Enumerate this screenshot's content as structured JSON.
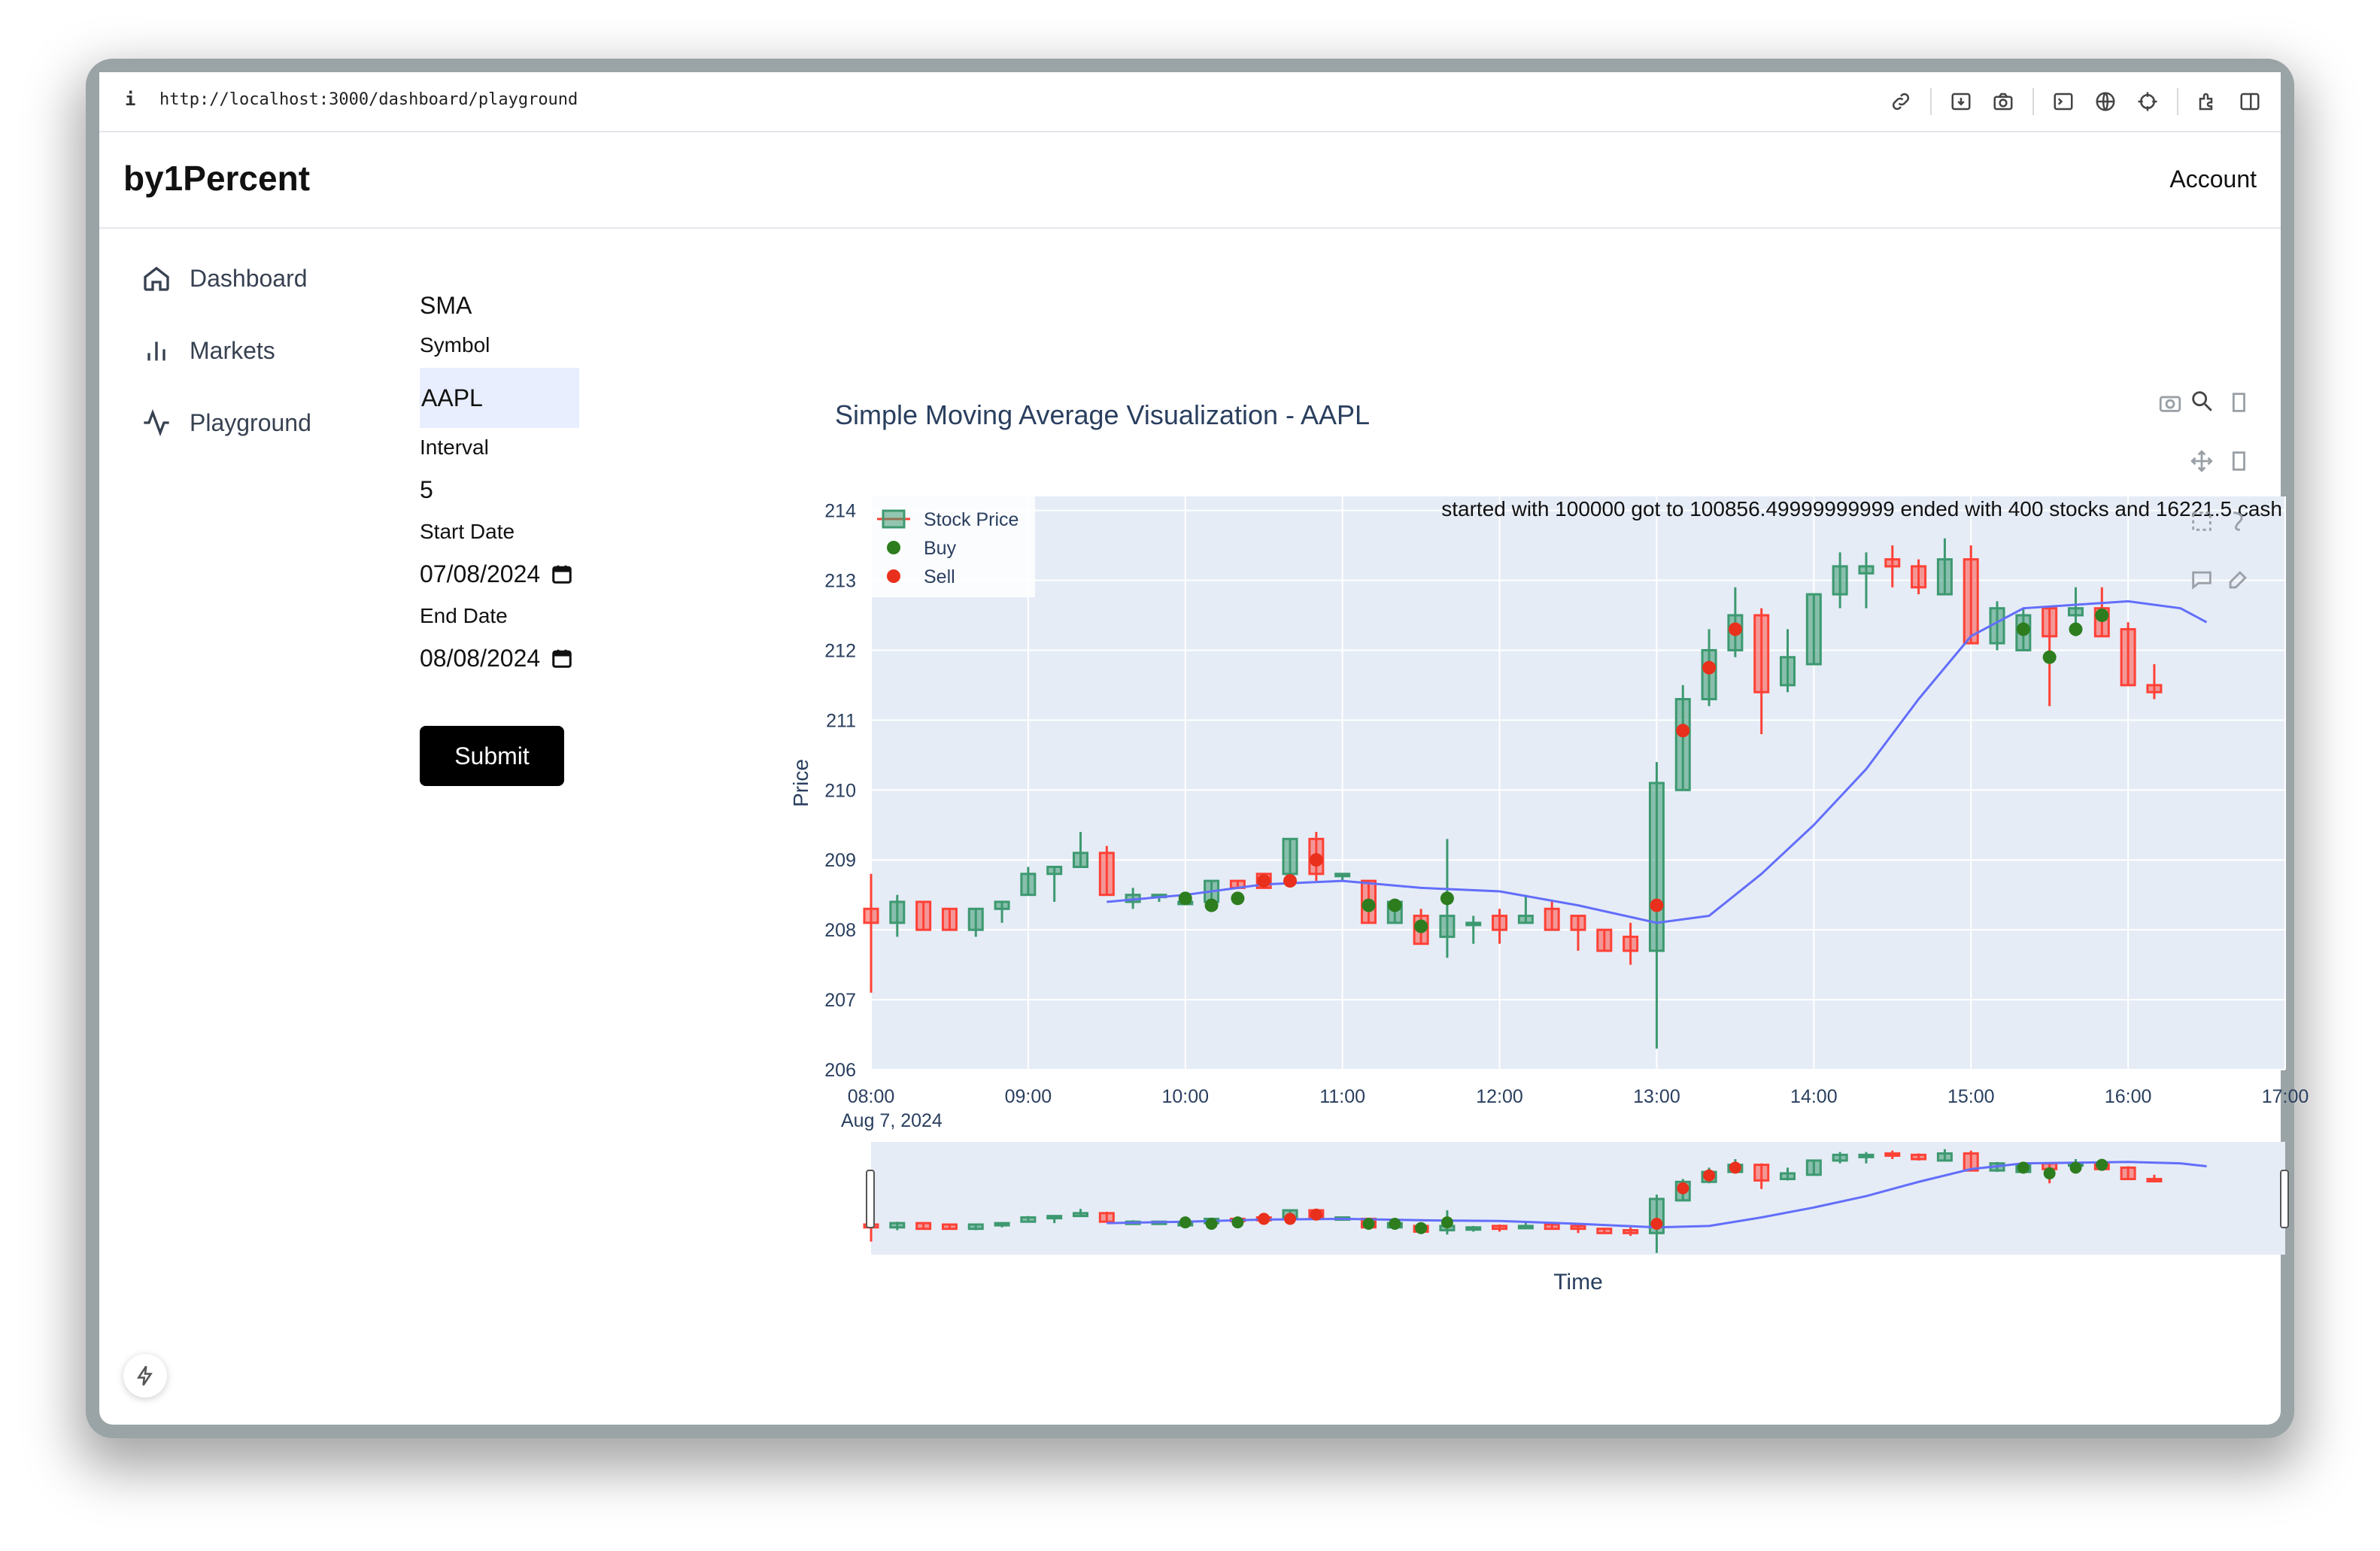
{
  "browser": {
    "info_glyph": "i",
    "url": "http://localhost:3000/dashboard/playground",
    "toolbar_icons": [
      "link-icon",
      "download-icon",
      "camera-icon",
      "terminal-icon",
      "globe-icon",
      "crosshair-icon",
      "extension-icon",
      "sidebar-icon"
    ]
  },
  "header": {
    "brand": "by1Percent",
    "account": "Account"
  },
  "sidebar": {
    "items": [
      {
        "label": "Dashboard",
        "icon": "home-icon"
      },
      {
        "label": "Markets",
        "icon": "bar-chart-icon"
      },
      {
        "label": "Playground",
        "icon": "activity-icon"
      }
    ]
  },
  "form": {
    "title": "SMA",
    "symbol_label": "Symbol",
    "symbol_value": "AAPL",
    "interval_label": "Interval",
    "interval_value": "5",
    "start_label": "Start Date",
    "start_value": "07/08/2024",
    "end_label": "End Date",
    "end_value": "08/08/2024",
    "submit_label": "Submit"
  },
  "colors": {
    "increasing": "#3d9970",
    "decreasing": "#ff4136",
    "sma": "#636efa",
    "buy": "#2d7d1e",
    "sell": "#e8301c",
    "plot_bg": "#e5ecf6"
  },
  "chart_data": {
    "type": "candlestick",
    "title": "Simple Moving Average Visualization - AAPL",
    "annotation": "started with 100000 got to 100856.49999999999 ended with 400 stocks and 16221.5 cash",
    "xlabel": "Time",
    "ylabel": "Price",
    "date_label": "Aug 7, 2024",
    "ylim": [
      206,
      214.2
    ],
    "xlim": [
      "08:00",
      "17:00"
    ],
    "x_ticks": [
      "08:00",
      "09:00",
      "10:00",
      "11:00",
      "12:00",
      "13:00",
      "14:00",
      "15:00",
      "16:00",
      "17:00"
    ],
    "y_ticks": [
      206,
      207,
      208,
      209,
      210,
      211,
      212,
      213,
      214
    ],
    "legend": [
      "Stock Price",
      "Buy",
      "Sell"
    ],
    "legend_position": "top-left",
    "grid": true,
    "rangeslider": true,
    "ohlc": [
      {
        "t": "08:00",
        "o": 208.3,
        "h": 208.8,
        "l": 207.1,
        "c": 208.1
      },
      {
        "t": "08:10",
        "o": 208.1,
        "h": 208.5,
        "l": 207.9,
        "c": 208.4
      },
      {
        "t": "08:20",
        "o": 208.4,
        "h": 208.4,
        "l": 208.0,
        "c": 208.0
      },
      {
        "t": "08:30",
        "o": 208.3,
        "h": 208.3,
        "l": 208.0,
        "c": 208.0
      },
      {
        "t": "08:40",
        "o": 208.0,
        "h": 208.3,
        "l": 207.9,
        "c": 208.3
      },
      {
        "t": "08:50",
        "o": 208.3,
        "h": 208.4,
        "l": 208.1,
        "c": 208.4
      },
      {
        "t": "09:00",
        "o": 208.5,
        "h": 208.9,
        "l": 208.5,
        "c": 208.8
      },
      {
        "t": "09:10",
        "o": 208.8,
        "h": 208.9,
        "l": 208.4,
        "c": 208.9
      },
      {
        "t": "09:20",
        "o": 208.9,
        "h": 209.4,
        "l": 208.9,
        "c": 209.1
      },
      {
        "t": "09:30",
        "o": 209.1,
        "h": 209.2,
        "l": 208.5,
        "c": 208.5
      },
      {
        "t": "09:40",
        "o": 208.4,
        "h": 208.6,
        "l": 208.3,
        "c": 208.5
      },
      {
        "t": "09:50",
        "o": 208.5,
        "h": 208.5,
        "l": 208.4,
        "c": 208.5
      },
      {
        "t": "10:00",
        "o": 208.4,
        "h": 208.5,
        "l": 208.4,
        "c": 208.4
      },
      {
        "t": "10:10",
        "o": 208.4,
        "h": 208.7,
        "l": 208.3,
        "c": 208.7
      },
      {
        "t": "10:20",
        "o": 208.7,
        "h": 208.7,
        "l": 208.6,
        "c": 208.6
      },
      {
        "t": "10:30",
        "o": 208.8,
        "h": 208.8,
        "l": 208.6,
        "c": 208.6
      },
      {
        "t": "10:40",
        "o": 208.8,
        "h": 209.3,
        "l": 208.8,
        "c": 209.3
      },
      {
        "t": "10:50",
        "o": 209.3,
        "h": 209.4,
        "l": 208.7,
        "c": 208.8
      },
      {
        "t": "11:00",
        "o": 208.8,
        "h": 208.8,
        "l": 208.7,
        "c": 208.8
      },
      {
        "t": "11:10",
        "o": 208.7,
        "h": 208.7,
        "l": 208.1,
        "c": 208.1
      },
      {
        "t": "11:20",
        "o": 208.1,
        "h": 208.4,
        "l": 208.1,
        "c": 208.4
      },
      {
        "t": "11:30",
        "o": 208.2,
        "h": 208.3,
        "l": 207.8,
        "c": 207.8
      },
      {
        "t": "11:40",
        "o": 207.9,
        "h": 209.3,
        "l": 207.6,
        "c": 208.2
      },
      {
        "t": "11:50",
        "o": 208.1,
        "h": 208.2,
        "l": 207.8,
        "c": 208.1
      },
      {
        "t": "12:00",
        "o": 208.2,
        "h": 208.3,
        "l": 207.8,
        "c": 208.0
      },
      {
        "t": "12:10",
        "o": 208.1,
        "h": 208.5,
        "l": 208.1,
        "c": 208.2
      },
      {
        "t": "12:20",
        "o": 208.3,
        "h": 208.4,
        "l": 208.0,
        "c": 208.0
      },
      {
        "t": "12:30",
        "o": 208.2,
        "h": 208.2,
        "l": 207.7,
        "c": 208.0
      },
      {
        "t": "12:40",
        "o": 208.0,
        "h": 208.0,
        "l": 207.7,
        "c": 207.7
      },
      {
        "t": "12:50",
        "o": 207.9,
        "h": 208.1,
        "l": 207.5,
        "c": 207.7
      },
      {
        "t": "13:00",
        "o": 207.7,
        "h": 210.4,
        "l": 206.3,
        "c": 210.1
      },
      {
        "t": "13:10",
        "o": 210.0,
        "h": 211.5,
        "l": 210.0,
        "c": 211.3
      },
      {
        "t": "13:20",
        "o": 211.3,
        "h": 212.3,
        "l": 211.2,
        "c": 212.0
      },
      {
        "t": "13:30",
        "o": 212.0,
        "h": 212.9,
        "l": 211.9,
        "c": 212.5
      },
      {
        "t": "13:40",
        "o": 212.5,
        "h": 212.6,
        "l": 210.8,
        "c": 211.4
      },
      {
        "t": "13:50",
        "o": 211.5,
        "h": 212.3,
        "l": 211.4,
        "c": 211.9
      },
      {
        "t": "14:00",
        "o": 211.8,
        "h": 212.8,
        "l": 211.8,
        "c": 212.8
      },
      {
        "t": "14:10",
        "o": 212.8,
        "h": 213.4,
        "l": 212.6,
        "c": 213.2
      },
      {
        "t": "14:20",
        "o": 213.1,
        "h": 213.4,
        "l": 212.6,
        "c": 213.2
      },
      {
        "t": "14:30",
        "o": 213.3,
        "h": 213.5,
        "l": 212.9,
        "c": 213.2
      },
      {
        "t": "14:40",
        "o": 213.2,
        "h": 213.3,
        "l": 212.8,
        "c": 212.9
      },
      {
        "t": "14:50",
        "o": 212.8,
        "h": 213.6,
        "l": 212.8,
        "c": 213.3
      },
      {
        "t": "15:00",
        "o": 213.3,
        "h": 213.5,
        "l": 212.1,
        "c": 212.1
      },
      {
        "t": "15:10",
        "o": 212.1,
        "h": 212.7,
        "l": 212.0,
        "c": 212.6
      },
      {
        "t": "15:20",
        "o": 212.0,
        "h": 212.6,
        "l": 212.0,
        "c": 212.5
      },
      {
        "t": "15:30",
        "o": 212.6,
        "h": 212.6,
        "l": 211.2,
        "c": 212.2
      },
      {
        "t": "15:40",
        "o": 212.5,
        "h": 212.9,
        "l": 212.2,
        "c": 212.6
      },
      {
        "t": "15:50",
        "o": 212.6,
        "h": 212.9,
        "l": 212.2,
        "c": 212.2
      },
      {
        "t": "16:00",
        "o": 212.3,
        "h": 212.4,
        "l": 211.5,
        "c": 211.5
      },
      {
        "t": "16:10",
        "o": 211.5,
        "h": 211.8,
        "l": 211.3,
        "c": 211.4
      }
    ],
    "sma": [
      {
        "t": "09:30",
        "v": 208.4
      },
      {
        "t": "10:00",
        "v": 208.5
      },
      {
        "t": "10:30",
        "v": 208.65
      },
      {
        "t": "11:00",
        "v": 208.7
      },
      {
        "t": "11:30",
        "v": 208.6
      },
      {
        "t": "12:00",
        "v": 208.55
      },
      {
        "t": "12:30",
        "v": 208.35
      },
      {
        "t": "13:00",
        "v": 208.1
      },
      {
        "t": "13:20",
        "v": 208.2
      },
      {
        "t": "13:40",
        "v": 208.8
      },
      {
        "t": "14:00",
        "v": 209.5
      },
      {
        "t": "14:20",
        "v": 210.3
      },
      {
        "t": "14:40",
        "v": 211.3
      },
      {
        "t": "15:00",
        "v": 212.2
      },
      {
        "t": "15:20",
        "v": 212.6
      },
      {
        "t": "15:40",
        "v": 212.65
      },
      {
        "t": "16:00",
        "v": 212.7
      },
      {
        "t": "16:20",
        "v": 212.6
      },
      {
        "t": "16:30",
        "v": 212.4
      }
    ],
    "buy": [
      {
        "t": "10:00",
        "v": 208.45
      },
      {
        "t": "10:10",
        "v": 208.35
      },
      {
        "t": "10:20",
        "v": 208.45
      },
      {
        "t": "11:10",
        "v": 208.35
      },
      {
        "t": "11:20",
        "v": 208.35
      },
      {
        "t": "11:30",
        "v": 208.05
      },
      {
        "t": "11:40",
        "v": 208.45
      },
      {
        "t": "15:20",
        "v": 212.3
      },
      {
        "t": "15:30",
        "v": 211.9
      },
      {
        "t": "15:40",
        "v": 212.3
      },
      {
        "t": "15:50",
        "v": 212.5
      }
    ],
    "sell": [
      {
        "t": "10:30",
        "v": 208.7
      },
      {
        "t": "10:40",
        "v": 208.7
      },
      {
        "t": "10:50",
        "v": 209.0
      },
      {
        "t": "13:00",
        "v": 208.35
      },
      {
        "t": "13:10",
        "v": 210.85
      },
      {
        "t": "13:20",
        "v": 211.75
      },
      {
        "t": "13:30",
        "v": 212.3
      }
    ]
  }
}
